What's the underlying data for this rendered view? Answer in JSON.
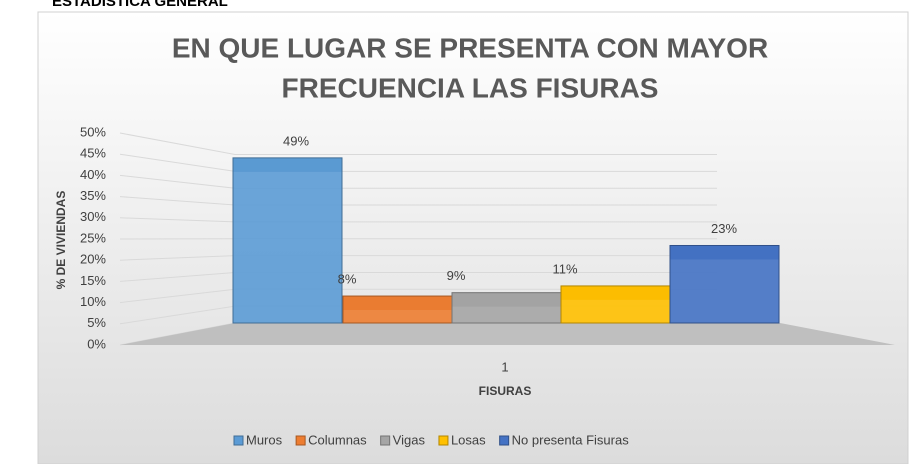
{
  "header": "ESTADÍSTICA GENERAL",
  "chart_data": {
    "type": "bar3d",
    "title": [
      "EN QUE LUGAR SE PRESENTA CON MAYOR",
      "FRECUENCIA LAS FISURAS"
    ],
    "categories": [
      "1"
    ],
    "x_label": "FISURAS",
    "y_label": "% DE VIVIENDAS",
    "series": [
      {
        "name": "Muros",
        "color": "#5b9bd5",
        "values": [
          49
        ],
        "value_labels": [
          "49%"
        ]
      },
      {
        "name": "Columnas",
        "color": "#ed7d31",
        "values": [
          8
        ],
        "value_labels": [
          "8%"
        ]
      },
      {
        "name": "Vigas",
        "color": "#a5a5a5",
        "values": [
          9
        ],
        "value_labels": [
          "9%"
        ]
      },
      {
        "name": "Losas",
        "color": "#ffc000",
        "values": [
          11
        ],
        "value_labels": [
          "11%"
        ]
      },
      {
        "name": "No presenta Fisuras",
        "color": "#4472c4",
        "values": [
          23
        ],
        "value_labels": [
          "23%"
        ]
      }
    ],
    "ylim": [
      0,
      50
    ],
    "yticks": [
      {
        "value": 0,
        "label": "0%"
      },
      {
        "value": 5,
        "label": "5%"
      },
      {
        "value": 10,
        "label": "10%"
      },
      {
        "value": 15,
        "label": "15%"
      },
      {
        "value": 20,
        "label": "20%"
      },
      {
        "value": 25,
        "label": "25%"
      },
      {
        "value": 30,
        "label": "30%"
      },
      {
        "value": 35,
        "label": "35%"
      },
      {
        "value": 40,
        "label": "40%"
      },
      {
        "value": 45,
        "label": "45%"
      },
      {
        "value": 50,
        "label": "50%"
      }
    ],
    "grid": true,
    "legend": "bottom"
  }
}
